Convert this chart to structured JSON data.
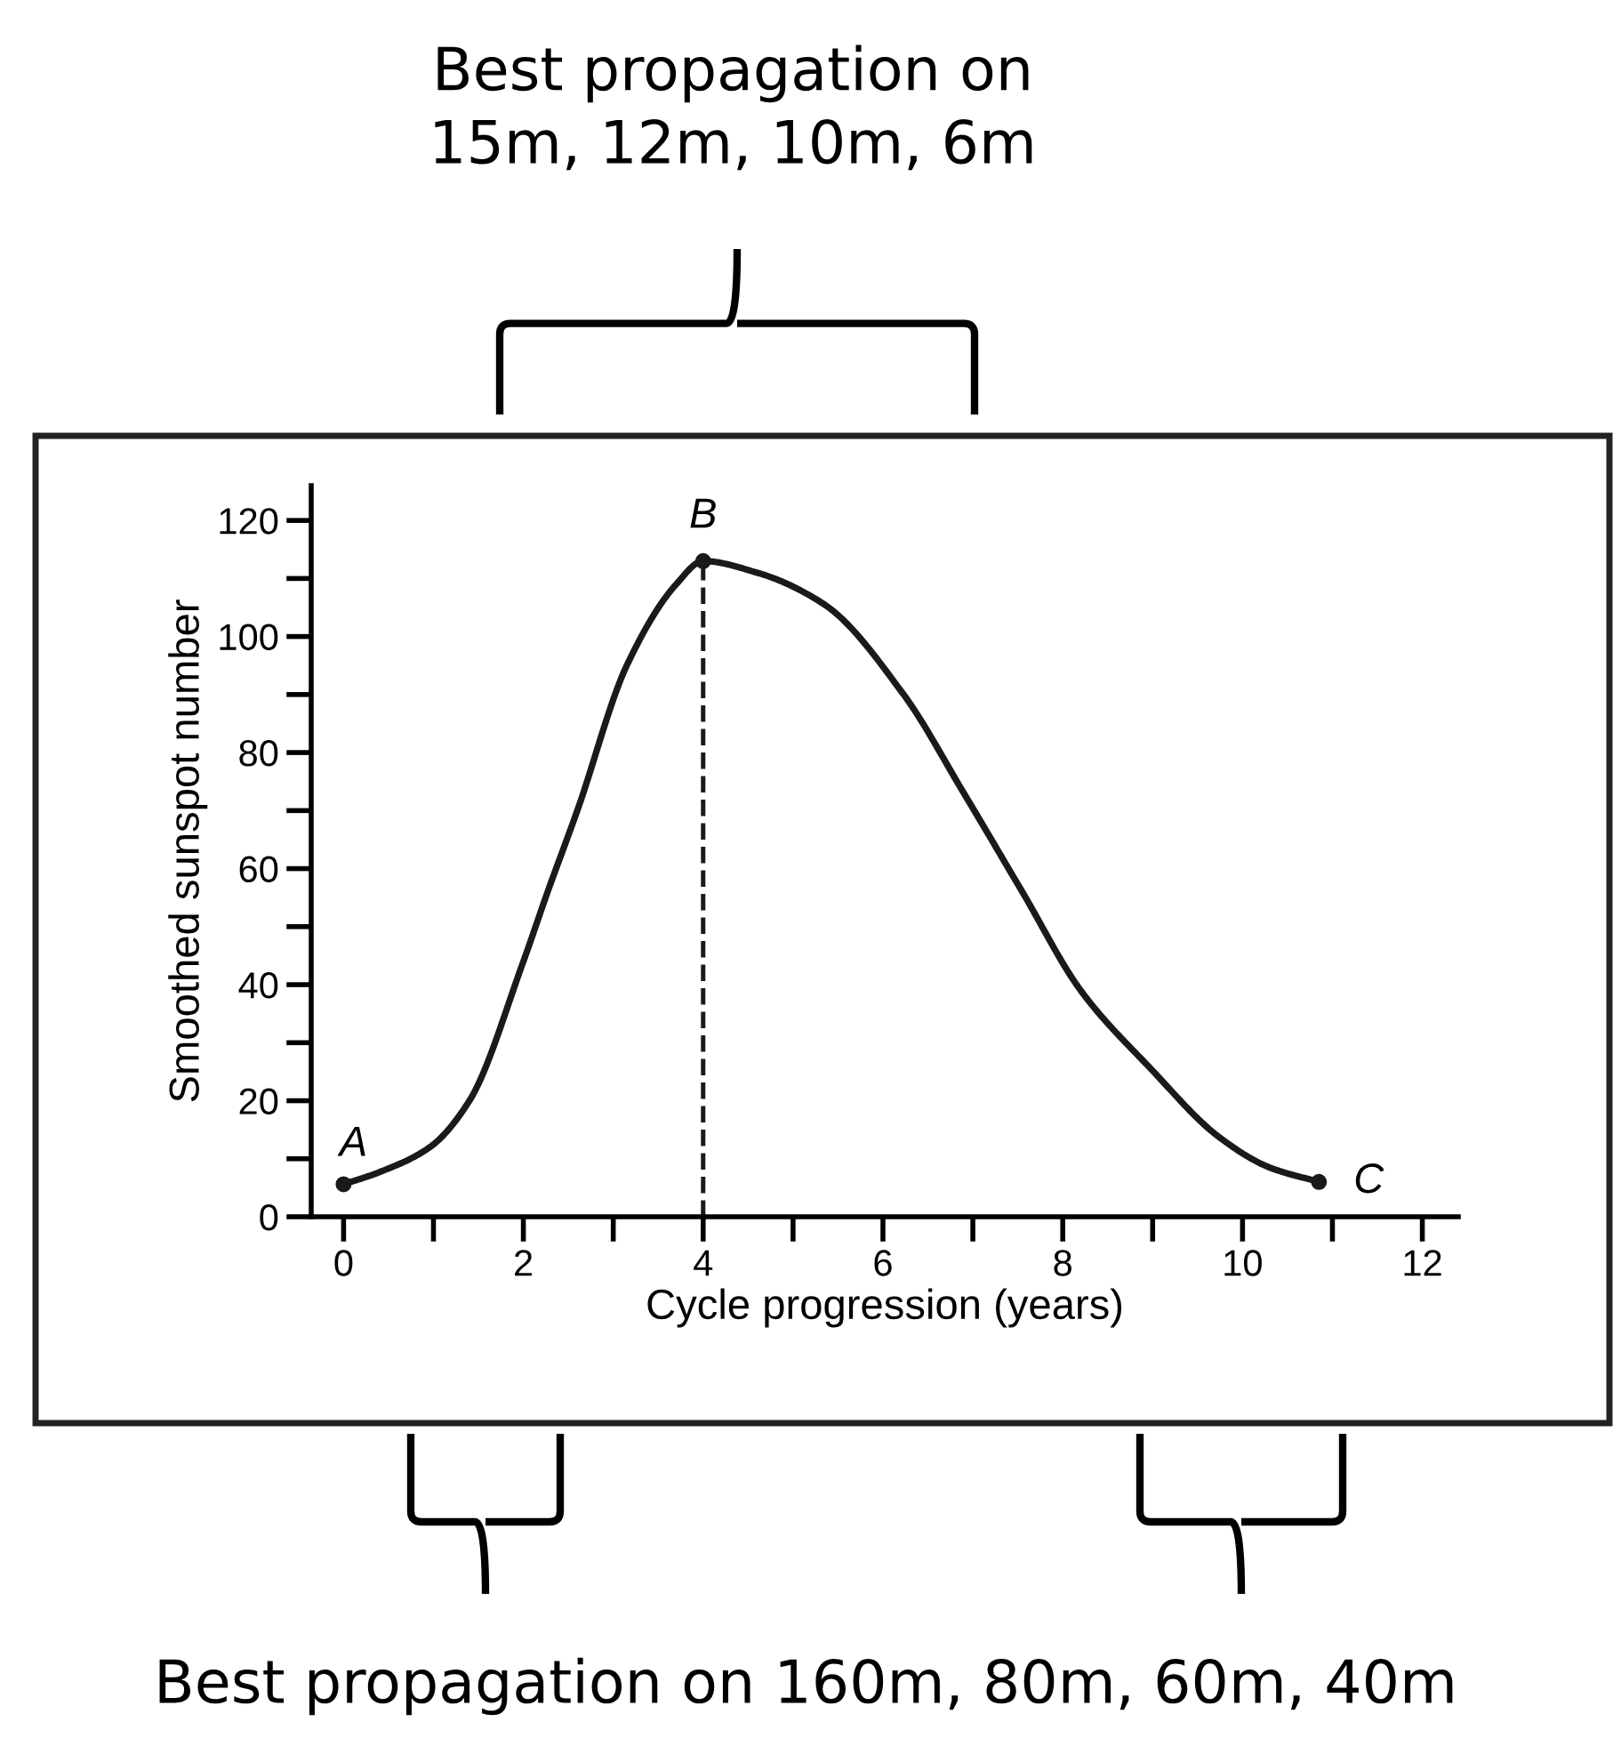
{
  "chart_data": {
    "type": "line",
    "xlabel": "Cycle progression (years)",
    "ylabel": "Smoothed sunspot number",
    "x": [
      0,
      0.4,
      0.96,
      1.4,
      2,
      2.27,
      2.6,
      3.15,
      3.7,
      4,
      4.6,
      5.35,
      6.23,
      6.9,
      7.55,
      8.2,
      8.98,
      9.75,
      10.3,
      10.85
    ],
    "series": [
      {
        "color": "#1a1a1a",
        "values": [
          5.6,
          7.7,
          12,
          20,
          44,
          56,
          70,
          95,
          109,
          113,
          111,
          105.5,
          90,
          73,
          56,
          39,
          25.5,
          13.6,
          8.5,
          6
        ]
      },
      {
        "type": "scatter",
        "x": [
          0,
          4,
          10.85
        ],
        "color": "#1a1a1a",
        "marker": "circle",
        "values": [
          5.6,
          113,
          6
        ]
      }
    ],
    "xlim": [
      -0.36,
      12.4
    ],
    "ylim": [
      0,
      126
    ],
    "xticks": [
      0,
      {
        "value": 1,
        "label": null
      },
      2,
      {
        "value": 3,
        "label": null
      },
      4,
      {
        "value": 5,
        "label": null
      },
      6,
      {
        "value": 7,
        "label": null
      },
      8,
      {
        "value": 9,
        "label": null
      },
      10,
      {
        "value": 11,
        "label": null
      },
      12
    ],
    "yticks": [
      0,
      {
        "value": 10,
        "label": null
      },
      20,
      {
        "value": 30,
        "label": null
      },
      40,
      {
        "value": 50,
        "label": null
      },
      60,
      {
        "value": 70,
        "label": null
      },
      80,
      {
        "value": 90,
        "label": null
      },
      100,
      {
        "value": 110,
        "label": null
      },
      120
    ],
    "ref_lines": [
      {
        "axis": "x",
        "value": 4,
        "line_style": "dashed",
        "color": "#1a1a1a"
      }
    ],
    "marker": "none",
    "line_style": "solid",
    "grid": false,
    "annotations": [
      {
        "text": "A",
        "x": 0,
        "y": 5.6
      },
      {
        "text": "B",
        "x": 4,
        "y": 113
      },
      {
        "text": "C",
        "x": 10.85,
        "y": 6
      },
      "Best propagation on\n15m, 12m, 10m, 6m",
      "Best propagation on 160m, 80m, 60m, 40m"
    ]
  }
}
